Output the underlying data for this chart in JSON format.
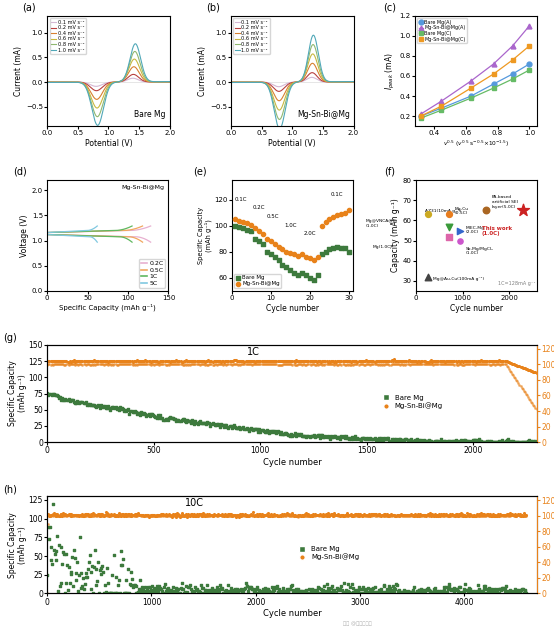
{
  "panel_labels": [
    "(a)",
    "(b)",
    "(c)",
    "(d)",
    "(e)",
    "(f)",
    "(g)",
    "(h)"
  ],
  "cv_speeds": [
    "0.1 mV s⁻¹",
    "0.2 mV s⁻¹",
    "0.4 mV s⁻¹",
    "0.6 mV s⁻¹",
    "0.8 mV s⁻¹",
    "1.0 mV s⁻¹"
  ],
  "cv_colors_a": [
    "#d4b8d4",
    "#b84040",
    "#d88030",
    "#c8b840",
    "#90b870",
    "#50a8b8"
  ],
  "cv_colors_b": [
    "#d4b8d4",
    "#b84040",
    "#d88030",
    "#c8b840",
    "#90b870",
    "#50a8b8"
  ],
  "bare_mg_label": "Bare Mg",
  "mg_sn_bi_label": "Mg-Sn-Bi@Mg",
  "green_color": "#3d7a3d",
  "orange_color": "#e8821a",
  "rate_colors_d": [
    "#e8b8d8",
    "#f0a060",
    "#6ab870",
    "#88cce0"
  ],
  "rate_labels_d": [
    "0.2C",
    "0.5C",
    "1C",
    "5C"
  ],
  "fig_bgcolor": "#ffffff"
}
